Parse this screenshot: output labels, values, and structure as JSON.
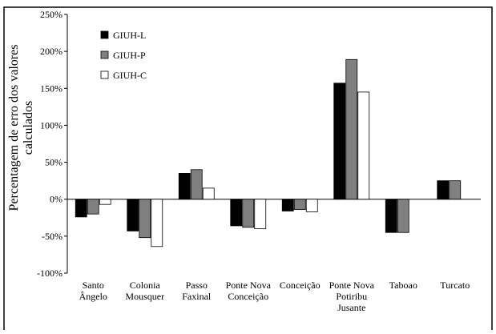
{
  "chart_data": {
    "type": "bar",
    "y_label": "Percentagem de erro dos valores\ncalculados",
    "categories": [
      "Santo\nÂngelo",
      "Colonia\nMousquer",
      "Passo\nFaxinal",
      "Ponte Nova\nConceição",
      "Conceição",
      "Ponte Nova\nPotiribu\nJusante",
      "Taboao",
      "Turcato"
    ],
    "series": [
      {
        "name": "GIUH-L",
        "color": "#000000",
        "values": [
          -24,
          -43,
          35,
          -36,
          -16,
          157,
          -45,
          25
        ]
      },
      {
        "name": "GIUH-P",
        "color": "#808080",
        "values": [
          -20,
          -52,
          40,
          -38,
          -14,
          189,
          -45,
          25
        ]
      },
      {
        "name": "GIUH-C",
        "color": "#ffffff",
        "values": [
          -7,
          -64,
          15,
          -40,
          -17,
          145,
          null,
          null
        ]
      }
    ],
    "ylim": [
      -100,
      250
    ],
    "yticks": [
      {
        "value": -100,
        "label": "-100%"
      },
      {
        "value": -50,
        "label": "-50%"
      },
      {
        "value": 0,
        "label": "0%"
      },
      {
        "value": 50,
        "label": "50%"
      },
      {
        "value": 100,
        "label": "100%"
      },
      {
        "value": 150,
        "label": "150%"
      },
      {
        "value": 200,
        "label": "200%"
      },
      {
        "value": 250,
        "label": "250%"
      }
    ],
    "legend": "upper-left"
  }
}
